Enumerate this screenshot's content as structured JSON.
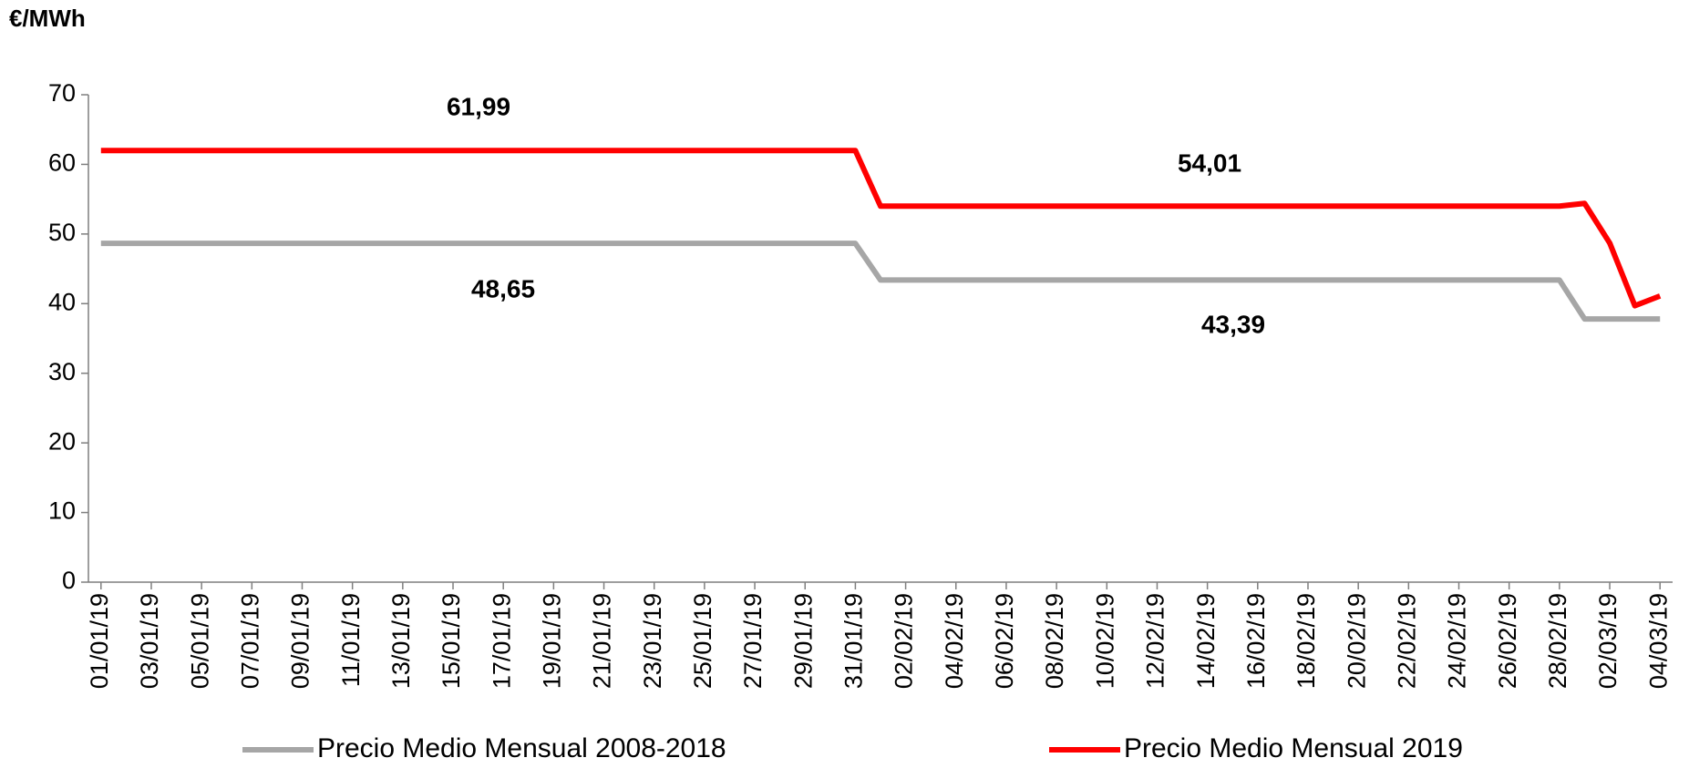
{
  "chart_data": {
    "type": "line",
    "y_label": "€/MWh",
    "categories": [
      "01/01/19",
      null,
      "03/01/19",
      null,
      "05/01/19",
      null,
      "07/01/19",
      null,
      "09/01/19",
      null,
      "11/01/19",
      null,
      "13/01/19",
      null,
      "15/01/19",
      null,
      "17/01/19",
      null,
      "19/01/19",
      null,
      "21/01/19",
      null,
      "23/01/19",
      null,
      "25/01/19",
      null,
      "27/01/19",
      null,
      "29/01/19",
      null,
      "31/01/19",
      null,
      "02/02/19",
      null,
      "04/02/19",
      null,
      "06/02/19",
      null,
      "08/02/19",
      null,
      "10/02/19",
      null,
      "12/02/19",
      null,
      "14/02/19",
      null,
      "16/02/19",
      null,
      "18/02/19",
      null,
      "20/02/19",
      null,
      "22/02/19",
      null,
      "24/02/19",
      null,
      "26/02/19",
      null,
      "28/02/19",
      null,
      "02/03/19",
      null,
      "04/03/19"
    ],
    "series": [
      {
        "name": "Precio Medio Mensual 2008-2018",
        "color": "#a6a6a6",
        "values": [
          48.65,
          48.65,
          48.65,
          48.65,
          48.65,
          48.65,
          48.65,
          48.65,
          48.65,
          48.65,
          48.65,
          48.65,
          48.65,
          48.65,
          48.65,
          48.65,
          48.65,
          48.65,
          48.65,
          48.65,
          48.65,
          48.65,
          48.65,
          48.65,
          48.65,
          48.65,
          48.65,
          48.65,
          48.65,
          48.65,
          48.65,
          43.39,
          43.39,
          43.39,
          43.39,
          43.39,
          43.39,
          43.39,
          43.39,
          43.39,
          43.39,
          43.39,
          43.39,
          43.39,
          43.39,
          43.39,
          43.39,
          43.39,
          43.39,
          43.39,
          43.39,
          43.39,
          43.39,
          43.39,
          43.39,
          43.39,
          43.39,
          43.39,
          43.39,
          37.8,
          37.8,
          37.8,
          37.8
        ]
      },
      {
        "name": "Precio Medio Mensual 2019",
        "color": "#ff0000",
        "values": [
          61.99,
          61.99,
          61.99,
          61.99,
          61.99,
          61.99,
          61.99,
          61.99,
          61.99,
          61.99,
          61.99,
          61.99,
          61.99,
          61.99,
          61.99,
          61.99,
          61.99,
          61.99,
          61.99,
          61.99,
          61.99,
          61.99,
          61.99,
          61.99,
          61.99,
          61.99,
          61.99,
          61.99,
          61.99,
          61.99,
          61.99,
          54.01,
          54.01,
          54.01,
          54.01,
          54.01,
          54.01,
          54.01,
          54.01,
          54.01,
          54.01,
          54.01,
          54.01,
          54.01,
          54.01,
          54.01,
          54.01,
          54.01,
          54.01,
          54.01,
          54.01,
          54.01,
          54.01,
          54.01,
          54.01,
          54.01,
          54.01,
          54.01,
          54.01,
          54.4,
          48.7,
          39.7,
          41.1
        ]
      }
    ],
    "annotations": [
      "61,99",
      "48,65",
      "54,01",
      "43,39"
    ],
    "ylim": [
      0,
      70
    ],
    "yticks": [
      0,
      10,
      20,
      30,
      40,
      50,
      60,
      70
    ],
    "legend": "bottom"
  }
}
